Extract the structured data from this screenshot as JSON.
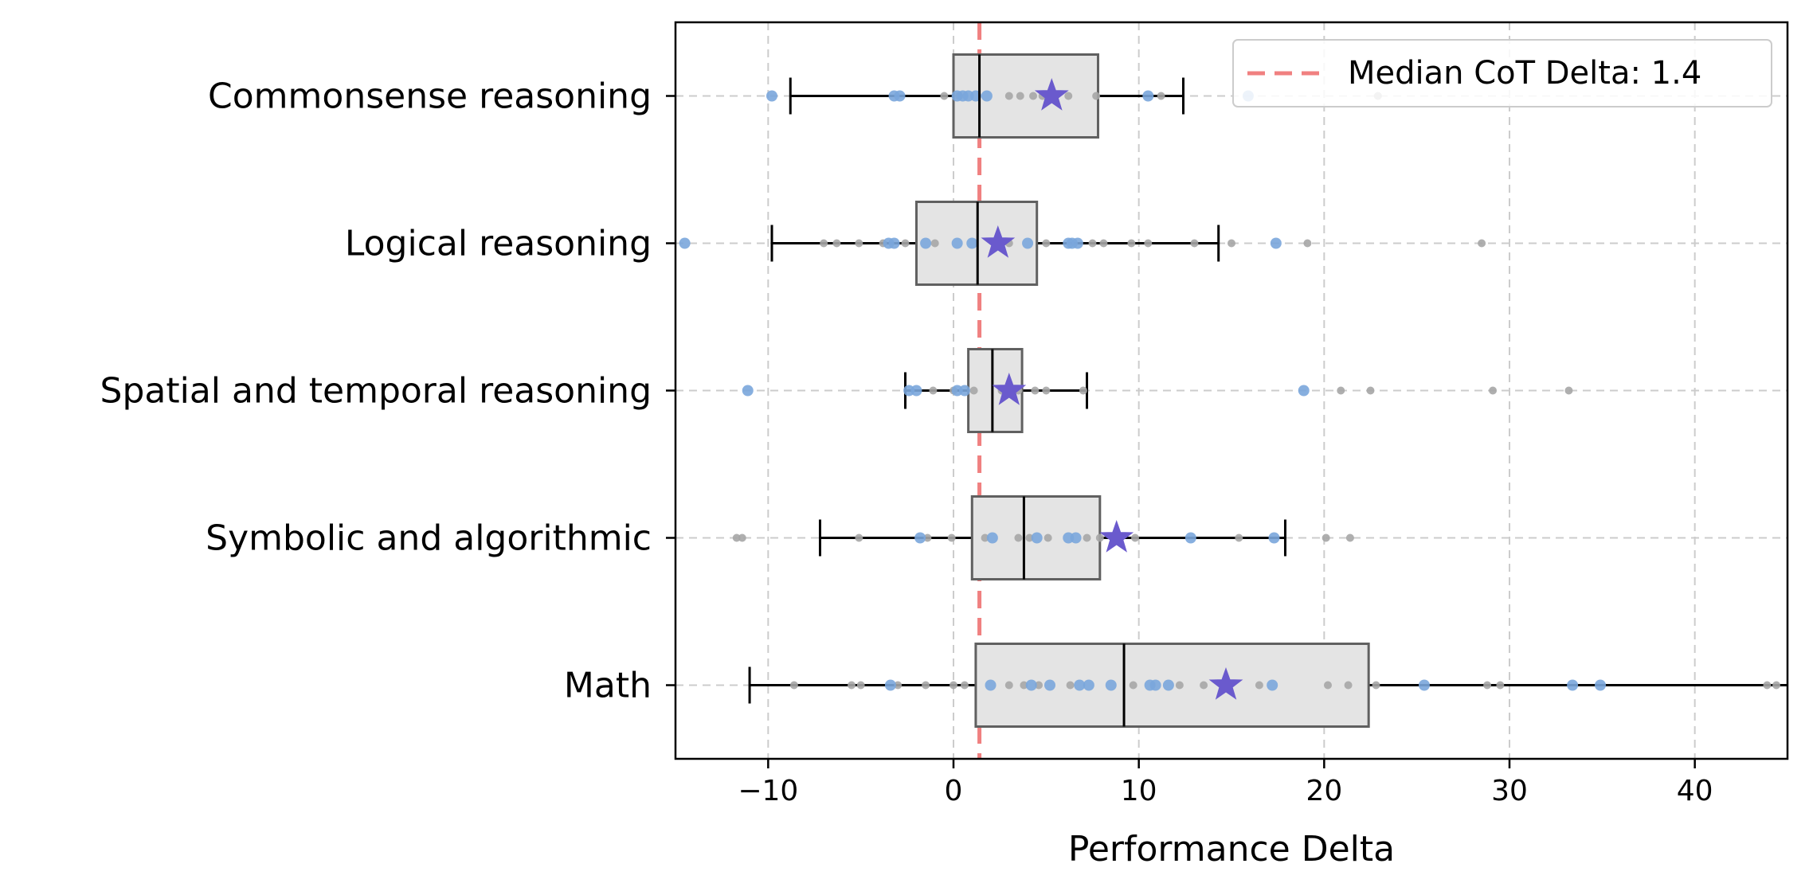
{
  "chart_data": {
    "type": "box",
    "orientation": "horizontal",
    "title": "",
    "xlabel": "Performance Delta",
    "ylabel": "",
    "xlim": [
      -15,
      45
    ],
    "xticks": [
      -10,
      0,
      10,
      20,
      30,
      40
    ],
    "xtick_labels": [
      "−10",
      "0",
      "10",
      "20",
      "30",
      "40"
    ],
    "grid": true,
    "median_line": {
      "value": 1.4,
      "label": "Median CoT Delta: 1.4",
      "color": "#f08080"
    },
    "legend_position": "top-right",
    "colors": {
      "box_fill": "#e4e4e4",
      "box_edge": "#606060",
      "star": "#6a5acd",
      "point_blue": "#7aa6dc",
      "point_gray": "#a6a6a6",
      "grid": "#cccccc"
    },
    "categories": [
      {
        "name": "Commonsense reasoning",
        "whisker_low": -8.8,
        "q1": 0,
        "median": 1.4,
        "q3": 7.8,
        "whisker_high": 12.4,
        "mean": 5.3,
        "points_blue": [
          -9.8,
          -3.2,
          -2.9,
          0.2,
          0.5,
          0.8,
          1.2,
          1.8,
          10.5,
          15.9
        ],
        "points_gray": [
          -0.5,
          0.3,
          3.0,
          3.6,
          4.3,
          4.8,
          6.2,
          7.7,
          11.2,
          22.9
        ]
      },
      {
        "name": "Logical reasoning",
        "whisker_low": -9.8,
        "q1": -2.0,
        "median": 1.3,
        "q3": 4.5,
        "whisker_high": 14.3,
        "mean": 2.4,
        "points_blue": [
          -14.5,
          -3.5,
          -3.2,
          -1.5,
          0.2,
          1.0,
          4.0,
          6.2,
          6.4,
          6.7,
          17.4
        ],
        "points_gray": [
          -7.0,
          -6.3,
          -5.1,
          -3.8,
          -2.6,
          -1.0,
          2.5,
          3.0,
          5.0,
          7.5,
          8.1,
          9.6,
          10.5,
          13.0,
          15.0,
          19.1,
          28.5
        ]
      },
      {
        "name": "Spatial and temporal reasoning",
        "whisker_low": -2.6,
        "q1": 0.8,
        "median": 2.1,
        "q3": 3.7,
        "whisker_high": 7.2,
        "mean": 3.0,
        "points_blue": [
          -11.1,
          -2.4,
          -2.0,
          0.2,
          0.6,
          18.9
        ],
        "points_gray": [
          -1.1,
          0.0,
          1.1,
          2.6,
          3.5,
          4.4,
          5.0,
          7.0,
          20.9,
          22.5,
          29.1,
          33.2
        ]
      },
      {
        "name": "Symbolic and algorithmic",
        "whisker_low": -7.2,
        "q1": 1.0,
        "median": 3.8,
        "q3": 7.9,
        "whisker_high": 17.9,
        "mean": 8.8,
        "points_blue": [
          -1.8,
          2.1,
          4.5,
          6.2,
          6.6,
          12.8,
          17.3
        ],
        "points_gray": [
          -11.7,
          -11.4,
          -5.1,
          -1.4,
          -0.1,
          1.7,
          3.5,
          4.1,
          5.1,
          7.2,
          7.9,
          9.8,
          15.4,
          20.1,
          21.4
        ]
      },
      {
        "name": "Math",
        "whisker_low": -11.0,
        "q1": 1.2,
        "median": 9.2,
        "q3": 22.4,
        "whisker_high": 45,
        "mean": 14.7,
        "points_blue": [
          -3.4,
          2.0,
          4.2,
          5.2,
          6.8,
          7.3,
          8.5,
          10.6,
          10.9,
          11.6,
          17.2,
          25.4,
          33.4,
          34.9
        ],
        "points_gray": [
          -8.6,
          -5.5,
          -5.0,
          -3.0,
          -1.5,
          0.0,
          0.6,
          3.0,
          3.8,
          4.6,
          6.3,
          9.7,
          12.2,
          13.5,
          16.5,
          20.2,
          21.3,
          22.8,
          28.8,
          29.5,
          43.9,
          44.4
        ]
      }
    ]
  }
}
